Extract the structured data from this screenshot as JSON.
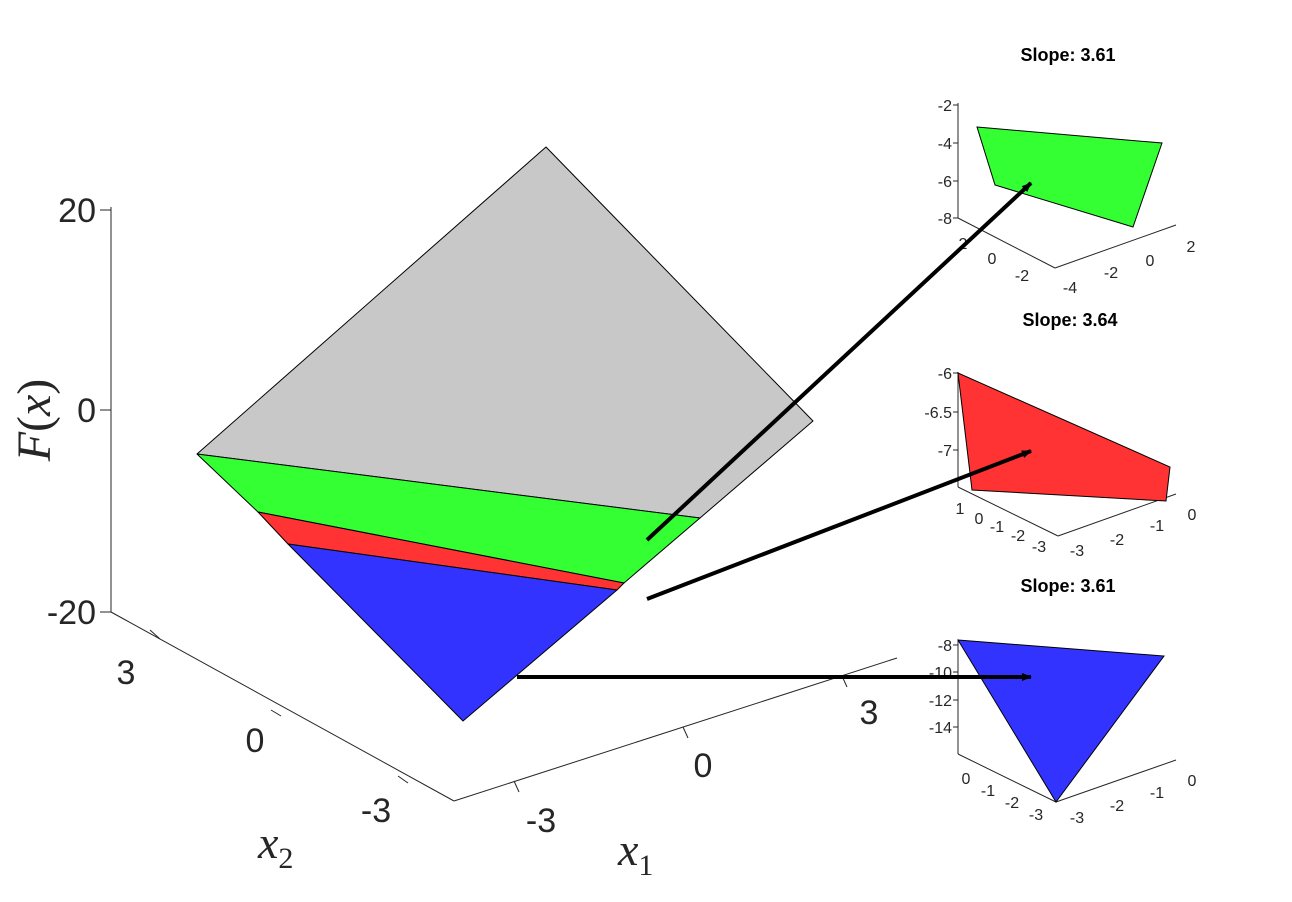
{
  "chart_data": {
    "type": "surface3d",
    "main": {
      "xlabel": {
        "var": "x",
        "sub": "1"
      },
      "ylabel": {
        "var": "x",
        "sub": "2"
      },
      "zlabel": {
        "script": "F",
        "open": "(",
        "var": "x",
        "close": ")"
      },
      "x_ticks": [
        "-3",
        "0",
        "3"
      ],
      "y_ticks": [
        "3",
        "0",
        "-3"
      ],
      "z_ticks": [
        "20",
        "0",
        "-20"
      ],
      "regions": [
        {
          "color": "#c8c8c8"
        },
        {
          "color": "#33ff33"
        },
        {
          "color": "#ff3333"
        },
        {
          "color": "#3333ff"
        }
      ]
    },
    "insets": [
      {
        "title": "Slope: 3.61",
        "color": "#33ff33",
        "z_ticks": [
          "-2",
          "-4",
          "-6",
          "-8"
        ],
        "x_ticks": [
          "-4",
          "-2",
          "0",
          "2"
        ],
        "y_ticks": [
          "2",
          "0",
          "-2"
        ]
      },
      {
        "title": "Slope: 3.64",
        "color": "#ff3333",
        "z_ticks": [
          "-6",
          "-6.5",
          "-7"
        ],
        "x_ticks": [
          "-3",
          "-2",
          "-1",
          "0"
        ],
        "y_ticks": [
          "1",
          "0",
          "-1",
          "-2",
          "-3"
        ]
      },
      {
        "title": "Slope: 3.61",
        "color": "#3333ff",
        "z_ticks": [
          "-8",
          "-10",
          "-12",
          "-14"
        ],
        "x_ticks": [
          "-3",
          "-2",
          "-1",
          "0"
        ],
        "y_ticks": [
          "0",
          "-1",
          "-2",
          "-3"
        ]
      }
    ]
  }
}
